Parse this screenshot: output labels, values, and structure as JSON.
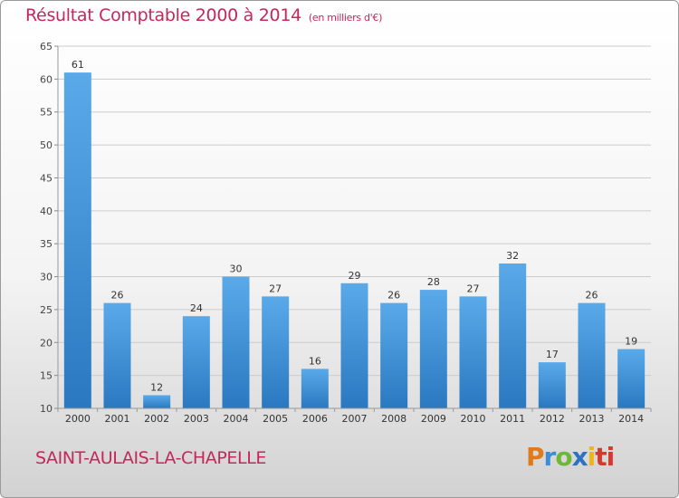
{
  "header": {
    "title": "Résultat Comptable 2000 à 2014",
    "unit": "(en milliers d'€)"
  },
  "footer": {
    "commune": "SAINT-AULAIS-LA-CHAPELLE",
    "logo_letters": [
      "P",
      "r",
      "o",
      "x",
      "i",
      "ti"
    ]
  },
  "colors": {
    "bar_light": "#5aaaea",
    "bar_dark": "#2a78c0",
    "title": "#c4275a",
    "grid": "#cccccc"
  },
  "chart_data": {
    "type": "bar",
    "title": "Résultat Comptable 2000 à 2014",
    "xlabel": "",
    "ylabel": "",
    "categories": [
      "2000",
      "2001",
      "2002",
      "2003",
      "2004",
      "2005",
      "2006",
      "2007",
      "2008",
      "2009",
      "2010",
      "2011",
      "2012",
      "2013",
      "2014"
    ],
    "values": [
      61,
      26,
      12,
      24,
      30,
      27,
      16,
      29,
      26,
      28,
      27,
      32,
      17,
      26,
      19
    ],
    "ylim": [
      10,
      65
    ],
    "yticks": [
      10,
      15,
      20,
      25,
      30,
      35,
      40,
      45,
      50,
      55,
      60,
      65
    ],
    "grid": true
  }
}
